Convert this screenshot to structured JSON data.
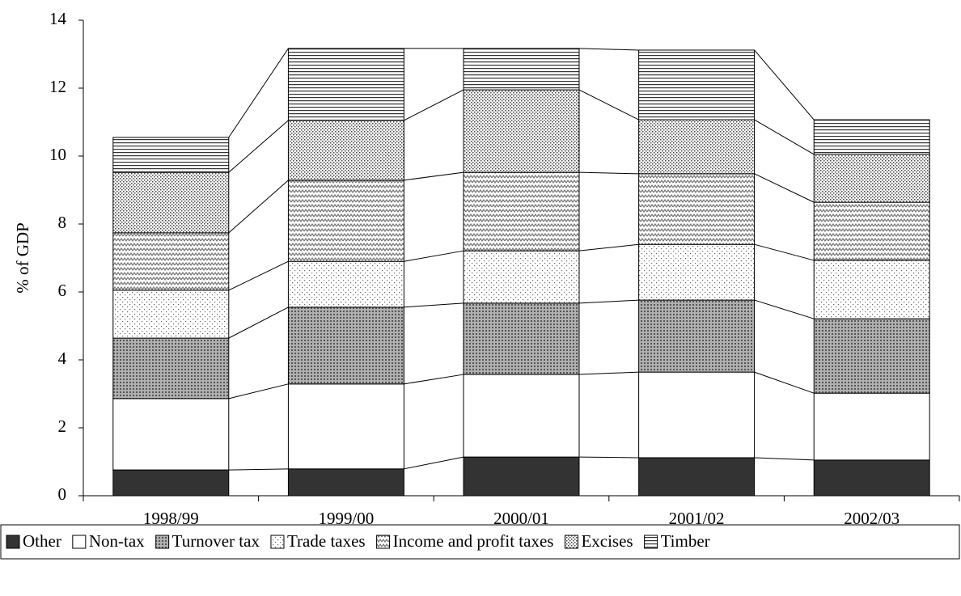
{
  "chart_data": {
    "type": "stacked_bar",
    "y_label": "% of GDP",
    "categories": [
      "1998/99",
      "1999/00",
      "2000/01",
      "2001/02",
      "2002/03"
    ],
    "series": [
      {
        "name": "Other",
        "color": "#333333",
        "pattern": "solid",
        "values": [
          0.76,
          0.79,
          1.14,
          1.12,
          1.05
        ]
      },
      {
        "name": "Non-tax",
        "color": "#ffffff",
        "pattern": "solid",
        "values": [
          2.1,
          2.5,
          2.43,
          2.52,
          1.97
        ]
      },
      {
        "name": "Turnover tax",
        "color": "#999999",
        "pattern": "dense-dots",
        "values": [
          1.78,
          2.26,
          2.1,
          2.12,
          2.19
        ]
      },
      {
        "name": "Trade taxes",
        "color": "#ffffff",
        "pattern": "sparse-dots",
        "values": [
          1.41,
          1.35,
          1.54,
          1.64,
          1.72
        ]
      },
      {
        "name": "Income and profit taxes",
        "color": "#cccccc",
        "pattern": "zigzag",
        "values": [
          1.69,
          2.39,
          2.31,
          2.08,
          1.71
        ]
      },
      {
        "name": "Excises",
        "color": "#bbbbbb",
        "pattern": "fine-dots",
        "values": [
          1.78,
          1.76,
          2.43,
          1.59,
          1.41
        ]
      },
      {
        "name": "Timber",
        "color": "#ffffff",
        "pattern": "hlines",
        "values": [
          1.03,
          2.12,
          1.22,
          2.05,
          1.02
        ]
      }
    ],
    "ylim": [
      0,
      14
    ],
    "yticks": [
      0,
      2,
      4,
      6,
      8,
      10,
      12,
      14
    ],
    "series_lines": true,
    "legend": "bottom"
  }
}
